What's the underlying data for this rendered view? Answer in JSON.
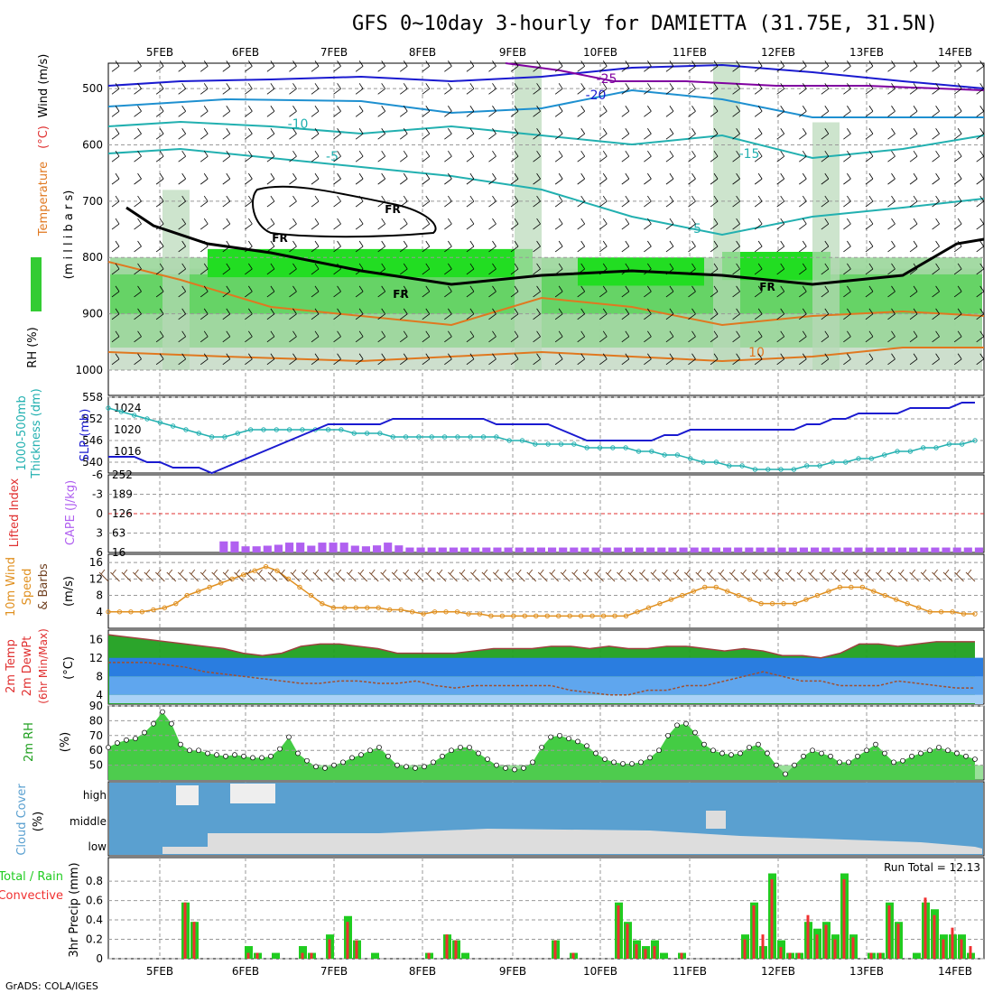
{
  "title": "GFS 0~10day 3-hourly for DAMIETTA (31.75E, 31.5N)",
  "credit": "GrADS: COLA/IGES",
  "date_labels": [
    "5FEB",
    "6FEB",
    "7FEB",
    "8FEB",
    "9FEB",
    "10FEB",
    "11FEB",
    "12FEB",
    "13FEB",
    "14FEB"
  ],
  "colors": {
    "rh_green": "#00dd00",
    "temp_blue": "#1a1ad0",
    "temp_cyan": "#22b0b0",
    "temp_orange": "#e07820",
    "temp_purple": "#8000a0",
    "cape": "#b060f0",
    "li": "#e03030",
    "wind10": "#e09020",
    "barb": "#704020",
    "t2m": "#20a020",
    "dew": "#5070d0",
    "cloud": "#5aa0d0",
    "precip_total": "#20cc20",
    "precip_conv": "#f03030"
  },
  "panels": {
    "upper": {
      "ylabel_rh": "RH (%)",
      "ylabel_temp": "Temperature",
      "ylabel_tempunit": "(°C)",
      "ylabel_wind": "Wind (m/s)",
      "ylabel_p": "(m i l l i b a r s)",
      "levels": [
        "500",
        "600",
        "700",
        "800",
        "900",
        "1000"
      ],
      "contour_labels": [
        {
          "text": "-25",
          "color": "#8000a0"
        },
        {
          "text": "-20",
          "color": "#1a1ad0"
        },
        {
          "text": "-15",
          "color": "#22b0b0"
        },
        {
          "text": "-10",
          "color": "#22b0b0"
        },
        {
          "text": "-5",
          "color": "#22b0b0"
        },
        {
          "text": "-5",
          "color": "#22b0b0"
        },
        {
          "text": "10",
          "color": "#e07820"
        },
        {
          "text": "FR",
          "color": "#000"
        },
        {
          "text": "FR",
          "color": "#000"
        },
        {
          "text": "FR",
          "color": "#000"
        },
        {
          "text": "FR",
          "color": "#000"
        }
      ]
    },
    "slp": {
      "ylabel_thick": "1000-500mb",
      "ylabel_thick2": "Thickness (dm)",
      "ylabel_slp": "SLP (mb)",
      "left_ticks": [
        "558",
        "552",
        "546",
        "540"
      ],
      "right_ticks": [
        "1024",
        "1020",
        "1016"
      ]
    },
    "cape": {
      "ylabel_li": "Lifted Index",
      "ylabel_cape": "CAPE (J/kg)",
      "li_ticks": [
        "-6",
        "-3",
        "0",
        "3",
        "6"
      ],
      "cape_ticks": [
        "252",
        "189",
        "126",
        "63",
        "16"
      ]
    },
    "wind": {
      "ylabel1": "10m Wind",
      "ylabel2": "Speed",
      "ylabel3": "& Barbs",
      "ylabel4": "(m/s)",
      "ticks": [
        "16",
        "12",
        "8",
        "4"
      ]
    },
    "temp": {
      "ylabel1": "2m Temp",
      "ylabel2": "2m DewPt",
      "ylabel3": "(6hr Min/Max)",
      "ylabel4": "(°C)",
      "ticks": [
        "16",
        "12",
        "8",
        "4"
      ]
    },
    "rh": {
      "ylabel1": "2m RH",
      "ylabel2": "(%)",
      "ticks": [
        "90",
        "80",
        "70",
        "60",
        "50"
      ]
    },
    "cloud": {
      "ylabel1": "Cloud Cover",
      "ylabel2": "(%)",
      "levels": [
        "high",
        "middle",
        "low"
      ]
    },
    "precip": {
      "ylabel1": "Total / Rain",
      "ylabel2": "Convective",
      "ylabel3": "3hr Precip (mm)",
      "run_total": "Run Total = 12.13",
      "ticks": [
        "0.8",
        "0.6",
        "0.4",
        "0.2",
        "0"
      ]
    }
  },
  "chart_data": [
    {
      "type": "line",
      "name_panel": "slp_thickness",
      "x_unit": "3-hourly step",
      "thickness_dm": [
        555,
        554,
        553,
        552,
        551,
        550,
        549,
        548,
        547,
        547,
        548,
        549,
        549,
        549,
        549,
        549,
        549,
        549,
        549,
        548,
        548,
        548,
        547,
        547,
        547,
        547,
        547,
        547,
        547,
        547,
        547,
        546,
        546,
        545,
        545,
        545,
        545,
        544,
        544,
        544,
        544,
        543,
        543,
        542,
        542,
        541,
        540,
        540,
        539,
        539,
        538,
        538,
        538,
        538,
        539,
        539,
        540,
        540,
        541,
        541,
        542,
        543,
        543,
        544,
        544,
        545,
        545,
        546
      ],
      "slp_mb": [
        1015,
        1015,
        1015,
        1014,
        1014,
        1013,
        1013,
        1013,
        1012,
        1013,
        1014,
        1015,
        1016,
        1017,
        1018,
        1019,
        1020,
        1021,
        1021,
        1021,
        1021,
        1021,
        1022,
        1022,
        1022,
        1022,
        1022,
        1022,
        1022,
        1022,
        1021,
        1021,
        1021,
        1021,
        1021,
        1020,
        1019,
        1018,
        1018,
        1018,
        1018,
        1018,
        1018,
        1019,
        1019,
        1020,
        1020,
        1020,
        1020,
        1020,
        1020,
        1020,
        1020,
        1020,
        1021,
        1021,
        1022,
        1022,
        1023,
        1023,
        1023,
        1023,
        1024,
        1024,
        1024,
        1024,
        1025,
        1025
      ],
      "ylim_thickness": [
        537,
        558
      ],
      "ylim_slp": [
        1012,
        1026
      ]
    },
    {
      "type": "bar",
      "name_panel": "cape_li",
      "cape": [
        0,
        0,
        0,
        0,
        0,
        0,
        0,
        0,
        0,
        0,
        36,
        36,
        20,
        20,
        22,
        25,
        32,
        32,
        22,
        32,
        32,
        32,
        22,
        20,
        23,
        32,
        23,
        16,
        16,
        16,
        16,
        16,
        16,
        16,
        16,
        16,
        16,
        16,
        16,
        16,
        16,
        16,
        16,
        16,
        16,
        16,
        16,
        16,
        16,
        16,
        16,
        16,
        16,
        16,
        16,
        16,
        16,
        16,
        16,
        16,
        16,
        16,
        16,
        16,
        16,
        16,
        16,
        16,
        16,
        16,
        16,
        16,
        16,
        16,
        16,
        16,
        16,
        16,
        16,
        16
      ],
      "cape_ylim": [
        0,
        252
      ]
    },
    {
      "type": "line",
      "name_panel": "wind10",
      "speed": [
        4,
        4,
        4,
        4,
        4.5,
        5,
        6,
        8,
        9,
        10,
        11,
        12,
        13,
        14,
        15,
        14,
        12,
        10,
        8,
        6,
        5,
        5,
        5,
        5,
        5,
        4.5,
        4.5,
        4,
        3.5,
        4,
        4,
        4,
        3.5,
        3.5,
        3,
        3,
        3,
        3,
        3,
        3,
        3,
        3,
        3,
        3,
        3,
        3,
        3,
        4,
        5,
        6,
        7,
        8,
        9,
        10,
        10,
        9,
        8,
        7,
        6,
        6,
        6,
        6,
        7,
        8,
        9,
        10,
        10,
        10,
        9,
        8,
        7,
        6,
        5,
        4,
        4,
        4,
        3.5,
        3.5
      ],
      "ylim": [
        0,
        18
      ]
    },
    {
      "type": "line",
      "name_panel": "temp2m",
      "temp": [
        17,
        16.5,
        16,
        15.5,
        15,
        14.5,
        14,
        13,
        12.5,
        13,
        14.5,
        15,
        15,
        14.5,
        14,
        13,
        13,
        13,
        13,
        13.5,
        14,
        14,
        14,
        14.5,
        14.5,
        14,
        14.5,
        14,
        14,
        14.5,
        14.5,
        14,
        13.5,
        14,
        13.5,
        12.5,
        12.5,
        12,
        13,
        15,
        15,
        14.5,
        15,
        15.5,
        15.5,
        15.5
      ],
      "dewpoint": [
        11,
        11,
        11,
        10.5,
        10,
        9,
        8.5,
        8,
        7.5,
        7,
        6.5,
        6.5,
        7,
        7,
        6.5,
        6.5,
        7,
        6,
        5.5,
        6,
        6,
        6,
        6,
        6,
        5,
        4.5,
        4,
        4,
        5,
        5,
        6,
        6,
        7,
        8,
        9,
        8,
        7,
        7,
        6,
        6,
        6,
        7,
        6.5,
        6,
        5.5,
        5.5
      ],
      "ylim": [
        2,
        18
      ]
    },
    {
      "type": "line",
      "name_panel": "rh2m",
      "rh": [
        62,
        65,
        67,
        68,
        72,
        78,
        86,
        78,
        64,
        60,
        60,
        58,
        57,
        56,
        57,
        56,
        55,
        55,
        56,
        61,
        69,
        58,
        53,
        49,
        48,
        50,
        52,
        55,
        57,
        60,
        62,
        56,
        50,
        49,
        48,
        49,
        52,
        56,
        60,
        62,
        62,
        58,
        54,
        50,
        48,
        47,
        48,
        52,
        62,
        69,
        70,
        68,
        66,
        63,
        58,
        54,
        52,
        51,
        51,
        52,
        55,
        60,
        70,
        77,
        78,
        72,
        64,
        60,
        58,
        57,
        58,
        62,
        64,
        58,
        50,
        44,
        50,
        56,
        60,
        58,
        56,
        52,
        52,
        56,
        60,
        64,
        58,
        52,
        53,
        56,
        58,
        60,
        62,
        60,
        58,
        56,
        54
      ],
      "ylim": [
        40,
        90
      ]
    },
    {
      "type": "bar",
      "name_panel": "precip",
      "total": [
        0,
        0,
        0,
        0,
        0,
        0,
        0,
        0,
        0.58,
        0.38,
        0,
        0,
        0,
        0,
        0,
        0.13,
        0.06,
        0,
        0.06,
        0,
        0,
        0.13,
        0.06,
        0,
        0.25,
        0,
        0.44,
        0.19,
        0,
        0.06,
        0,
        0,
        0,
        0,
        0,
        0.06,
        0,
        0.25,
        0.19,
        0.06,
        0,
        0,
        0,
        0,
        0,
        0,
        0,
        0,
        0,
        0.19,
        0,
        0.06,
        0,
        0,
        0,
        0,
        0.58,
        0.38,
        0.19,
        0.13,
        0.19,
        0.06,
        0,
        0.06,
        0,
        0,
        0,
        0,
        0,
        0,
        0.25,
        0.58,
        0.13,
        0.88,
        0.19,
        0.06,
        0.06,
        0.38,
        0.31,
        0.38,
        0.25,
        0.88,
        0.25,
        0,
        0.06,
        0.06,
        0.58,
        0.38,
        0,
        0.06,
        0.58,
        0.51,
        0.25,
        0.25,
        0.25,
        0.06,
        0
      ],
      "convective": [
        0,
        0,
        0,
        0,
        0,
        0,
        0,
        0,
        0.58,
        0.38,
        0,
        0,
        0,
        0,
        0,
        0.06,
        0.06,
        0,
        0,
        0,
        0,
        0.06,
        0.06,
        0,
        0.2,
        0,
        0.38,
        0.19,
        0,
        0,
        0,
        0,
        0,
        0,
        0,
        0.06,
        0,
        0.25,
        0.19,
        0,
        0,
        0,
        0,
        0,
        0,
        0,
        0,
        0,
        0,
        0.19,
        0,
        0.06,
        0,
        0,
        0,
        0,
        0.55,
        0.36,
        0.15,
        0.1,
        0.13,
        0,
        0,
        0.06,
        0,
        0,
        0,
        0,
        0,
        0,
        0.2,
        0.55,
        0.25,
        0.82,
        0.12,
        0.06,
        0.06,
        0.45,
        0.25,
        0.35,
        0.2,
        0.82,
        0.22,
        0,
        0.06,
        0.06,
        0.55,
        0.36,
        0,
        0,
        0.63,
        0.45,
        0.2,
        0.32,
        0.2,
        0.13,
        0
      ],
      "ylim": [
        0,
        0.95
      ]
    }
  ]
}
